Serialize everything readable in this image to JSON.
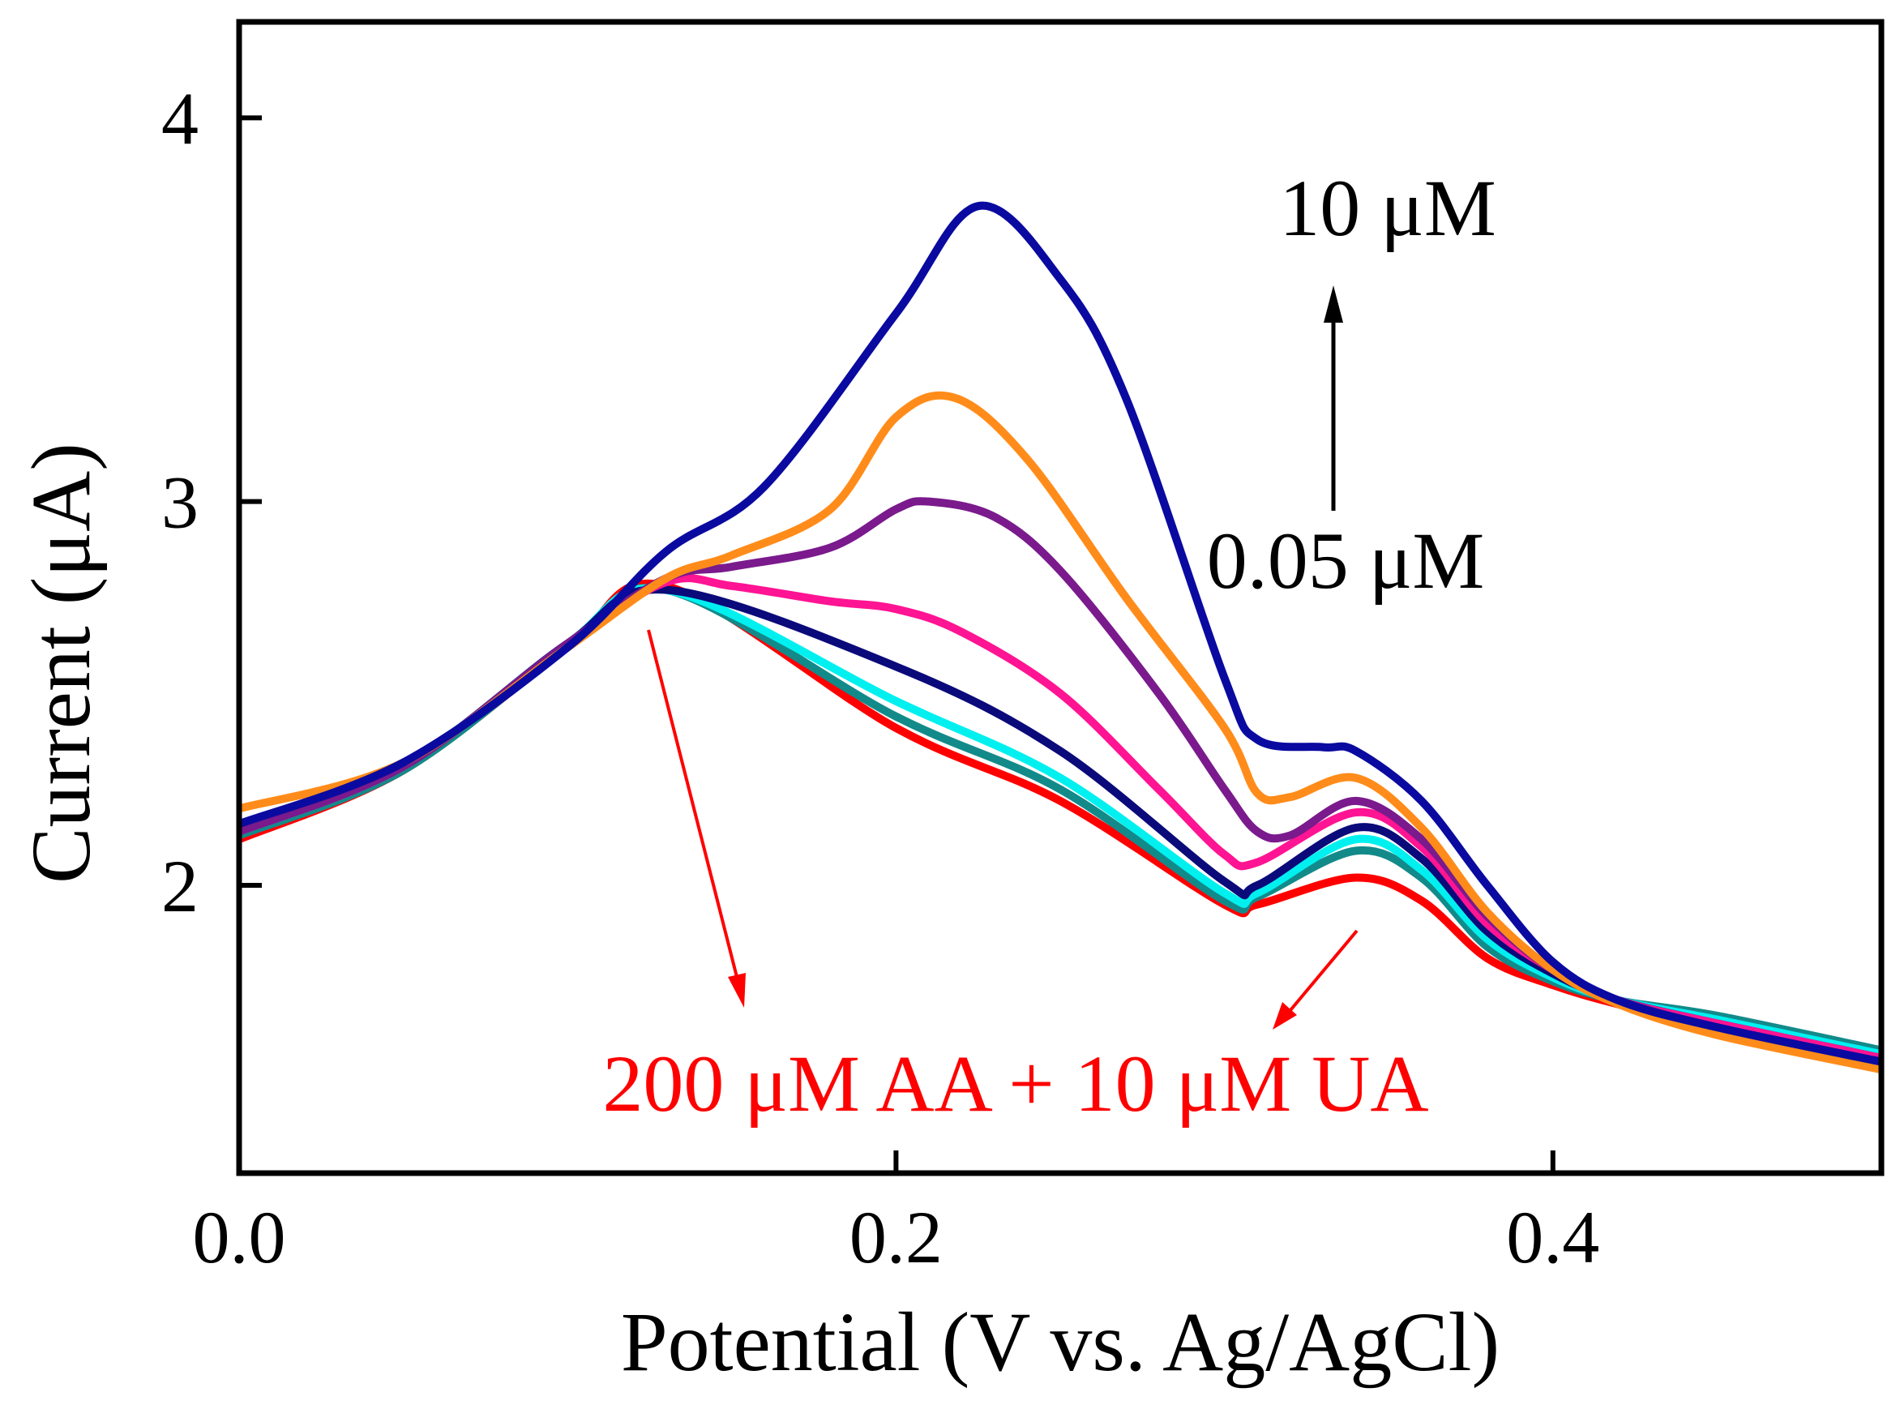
{
  "chart_data": {
    "type": "line",
    "title": "",
    "xlabel": "Potential (V vs. Ag/AgCl)",
    "ylabel": "Current (μA)",
    "xlim": [
      0,
      0.5
    ],
    "ylim": [
      1.25,
      4.25
    ],
    "xticks": [
      0.0,
      0.2,
      0.4
    ],
    "xtick_labels": [
      "0.0",
      "0.2",
      "0.4"
    ],
    "yticks": [
      2,
      3,
      4
    ],
    "ytick_labels": [
      "2",
      "3",
      "4"
    ],
    "grid": false,
    "series": [
      {
        "name": "200 μM AA + 10 μM UA",
        "color": "#ff0000",
        "x": [
          0,
          0.05,
          0.1,
          0.13,
          0.2,
          0.25,
          0.3,
          0.31,
          0.34,
          0.36,
          0.38,
          0.4,
          0.42,
          0.45,
          0.5
        ],
        "y": [
          2.12,
          2.3,
          2.62,
          2.78,
          2.41,
          2.22,
          1.95,
          1.95,
          2.02,
          1.96,
          1.81,
          1.74,
          1.69,
          1.63,
          1.54
        ]
      },
      {
        "name": "teal",
        "color": "#138a8a",
        "x": [
          0,
          0.05,
          0.1,
          0.13,
          0.2,
          0.25,
          0.3,
          0.31,
          0.34,
          0.36,
          0.38,
          0.4,
          0.42,
          0.45,
          0.5
        ],
        "y": [
          2.13,
          2.3,
          2.62,
          2.77,
          2.44,
          2.25,
          1.96,
          1.97,
          2.09,
          2.02,
          1.84,
          1.75,
          1.7,
          1.66,
          1.57
        ]
      },
      {
        "name": "cyan",
        "color": "#00f0f0",
        "x": [
          0,
          0.05,
          0.1,
          0.13,
          0.2,
          0.25,
          0.3,
          0.31,
          0.34,
          0.36,
          0.38,
          0.4,
          0.42,
          0.45,
          0.5
        ],
        "y": [
          2.14,
          2.31,
          2.63,
          2.77,
          2.48,
          2.28,
          1.98,
          1.98,
          2.12,
          2.04,
          1.86,
          1.76,
          1.7,
          1.65,
          1.56
        ]
      },
      {
        "name": "navy",
        "color": "#0a0a7a",
        "x": [
          0,
          0.05,
          0.1,
          0.13,
          0.2,
          0.25,
          0.3,
          0.31,
          0.34,
          0.36,
          0.38,
          0.4,
          0.42,
          0.45,
          0.5
        ],
        "y": [
          2.15,
          2.31,
          2.63,
          2.77,
          2.57,
          2.35,
          2.01,
          2.0,
          2.15,
          2.07,
          1.88,
          1.77,
          1.7,
          1.64,
          1.55
        ]
      },
      {
        "name": "pink",
        "color": "#ff1493",
        "x": [
          0,
          0.05,
          0.1,
          0.13,
          0.15,
          0.18,
          0.2,
          0.22,
          0.25,
          0.28,
          0.3,
          0.31,
          0.34,
          0.36,
          0.38,
          0.4,
          0.42,
          0.45,
          0.5
        ],
        "y": [
          2.14,
          2.31,
          2.63,
          2.79,
          2.78,
          2.74,
          2.72,
          2.66,
          2.5,
          2.25,
          2.08,
          2.06,
          2.19,
          2.1,
          1.9,
          1.78,
          1.7,
          1.64,
          1.55
        ]
      },
      {
        "name": "purple",
        "color": "#7a1a8c",
        "x": [
          0,
          0.05,
          0.1,
          0.13,
          0.15,
          0.18,
          0.2,
          0.21,
          0.23,
          0.25,
          0.28,
          0.3,
          0.31,
          0.32,
          0.34,
          0.36,
          0.38,
          0.4,
          0.42,
          0.45,
          0.5
        ],
        "y": [
          2.14,
          2.31,
          2.63,
          2.8,
          2.83,
          2.88,
          2.98,
          3.0,
          2.96,
          2.82,
          2.5,
          2.25,
          2.14,
          2.13,
          2.22,
          2.12,
          1.92,
          1.78,
          1.7,
          1.63,
          1.54
        ]
      },
      {
        "name": "orange",
        "color": "#ff8c1a",
        "x": [
          0,
          0.05,
          0.1,
          0.13,
          0.15,
          0.18,
          0.2,
          0.218,
          0.24,
          0.27,
          0.3,
          0.31,
          0.32,
          0.34,
          0.36,
          0.38,
          0.4,
          0.42,
          0.45,
          0.5
        ],
        "y": [
          2.2,
          2.32,
          2.62,
          2.8,
          2.86,
          2.98,
          3.22,
          3.27,
          3.11,
          2.75,
          2.41,
          2.24,
          2.23,
          2.28,
          2.15,
          1.93,
          1.78,
          1.69,
          1.61,
          1.52
        ]
      },
      {
        "name": "10 μM",
        "color": "#0a0aa0",
        "x": [
          0,
          0.05,
          0.1,
          0.13,
          0.16,
          0.2,
          0.225,
          0.25,
          0.27,
          0.3,
          0.31,
          0.33,
          0.34,
          0.36,
          0.38,
          0.4,
          0.42,
          0.45,
          0.5
        ],
        "y": [
          2.16,
          2.32,
          2.62,
          2.87,
          3.04,
          3.49,
          3.77,
          3.58,
          3.27,
          2.54,
          2.38,
          2.36,
          2.35,
          2.22,
          2.0,
          1.8,
          1.7,
          1.63,
          1.54
        ]
      }
    ],
    "annotations": {
      "top_label": "10 μM",
      "bottom_label": "0.05 μM",
      "baseline_label": "200 μM AA + 10 μM UA"
    }
  }
}
